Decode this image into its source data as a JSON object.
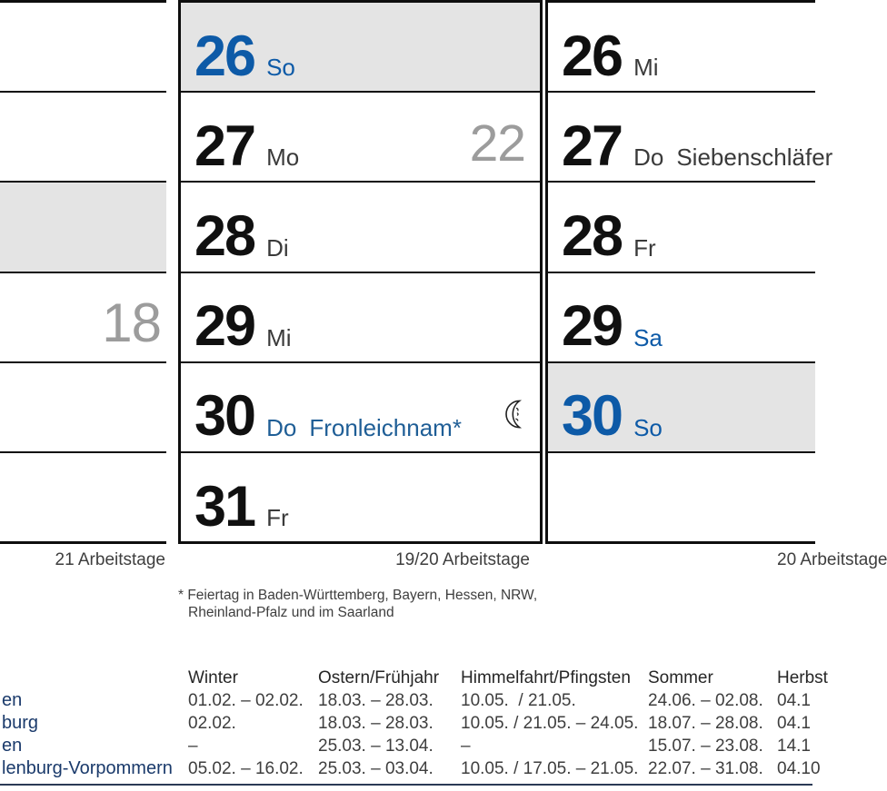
{
  "colors": {
    "accent_blue": "#0d5aa7",
    "holiday_blue": "#1f5e96",
    "highlight_gray": "#e4e4e4",
    "week_number_gray": "#9c9c9c",
    "state_navy": "#1a3a6b",
    "bottom_rule_navy": "#2b3a55"
  },
  "calendar": {
    "left_column": {
      "rows": [
        {},
        {},
        {
          "highlight": true
        },
        {
          "week": "18"
        },
        {},
        {}
      ],
      "footer": "21 Arbeitstage"
    },
    "middle_column": {
      "rows": [
        {
          "day": "26",
          "weekday": "So",
          "highlight": true,
          "blue": true
        },
        {
          "day": "27",
          "weekday": "Mo",
          "week": "22"
        },
        {
          "day": "28",
          "weekday": "Di"
        },
        {
          "day": "29",
          "weekday": "Mi"
        },
        {
          "day": "30",
          "weekday": "Do",
          "holiday": "Fronleichnam*",
          "label_blue": true,
          "moon": true
        },
        {
          "day": "31",
          "weekday": "Fr"
        }
      ],
      "footer": "19/20 Arbeitstage"
    },
    "right_column": {
      "rows": [
        {
          "day": "26",
          "weekday": "Mi"
        },
        {
          "day": "27",
          "weekday": "Do",
          "holiday": "Siebenschläfer"
        },
        {
          "day": "28",
          "weekday": "Fr"
        },
        {
          "day": "29",
          "weekday": "Sa",
          "weekday_blue": true
        },
        {
          "day": "30",
          "weekday": "So",
          "highlight": true,
          "blue": true
        },
        {}
      ],
      "footer": "20 Arbeitstage"
    },
    "footnote_line1": "* Feiertag in Baden-Württemberg, Bayern, Hessen, NRW,",
    "footnote_line2": "Rheinland-Pfalz und im Saarland",
    "moon_icon": "last-quarter-moon-with-face"
  },
  "holiday_table": {
    "headers": {
      "winter": "Winter",
      "ostern": "Ostern/Frühjahr",
      "himmelfahrt": "Himmelfahrt/Pfingsten",
      "sommer": "Sommer",
      "herbst": "Herbst"
    },
    "rows": [
      {
        "state": "en",
        "winter": "01.02. – 02.02.",
        "ostern": "18.03. – 28.03.",
        "himmelfahrt": "10.05.  / 21.05.",
        "sommer": "24.06. – 02.08.",
        "herbst": "04.1"
      },
      {
        "state": "burg",
        "winter": "02.02.",
        "ostern": "18.03. – 28.03.",
        "himmelfahrt": "10.05. / 21.05. – 24.05.",
        "sommer": "18.07. – 28.08.",
        "herbst": "04.1"
      },
      {
        "state": "en",
        "winter": "–",
        "ostern": "25.03. – 13.04.",
        "himmelfahrt": "–",
        "sommer": "15.07. – 23.08.",
        "herbst": "14.1"
      },
      {
        "state": "lenburg-Vorpommern",
        "winter": "05.02. – 16.02.",
        "ostern": "25.03. – 03.04.",
        "himmelfahrt": "10.05. / 17.05. – 21.05.",
        "sommer": "22.07. – 31.08.",
        "herbst": "04.10"
      }
    ]
  }
}
